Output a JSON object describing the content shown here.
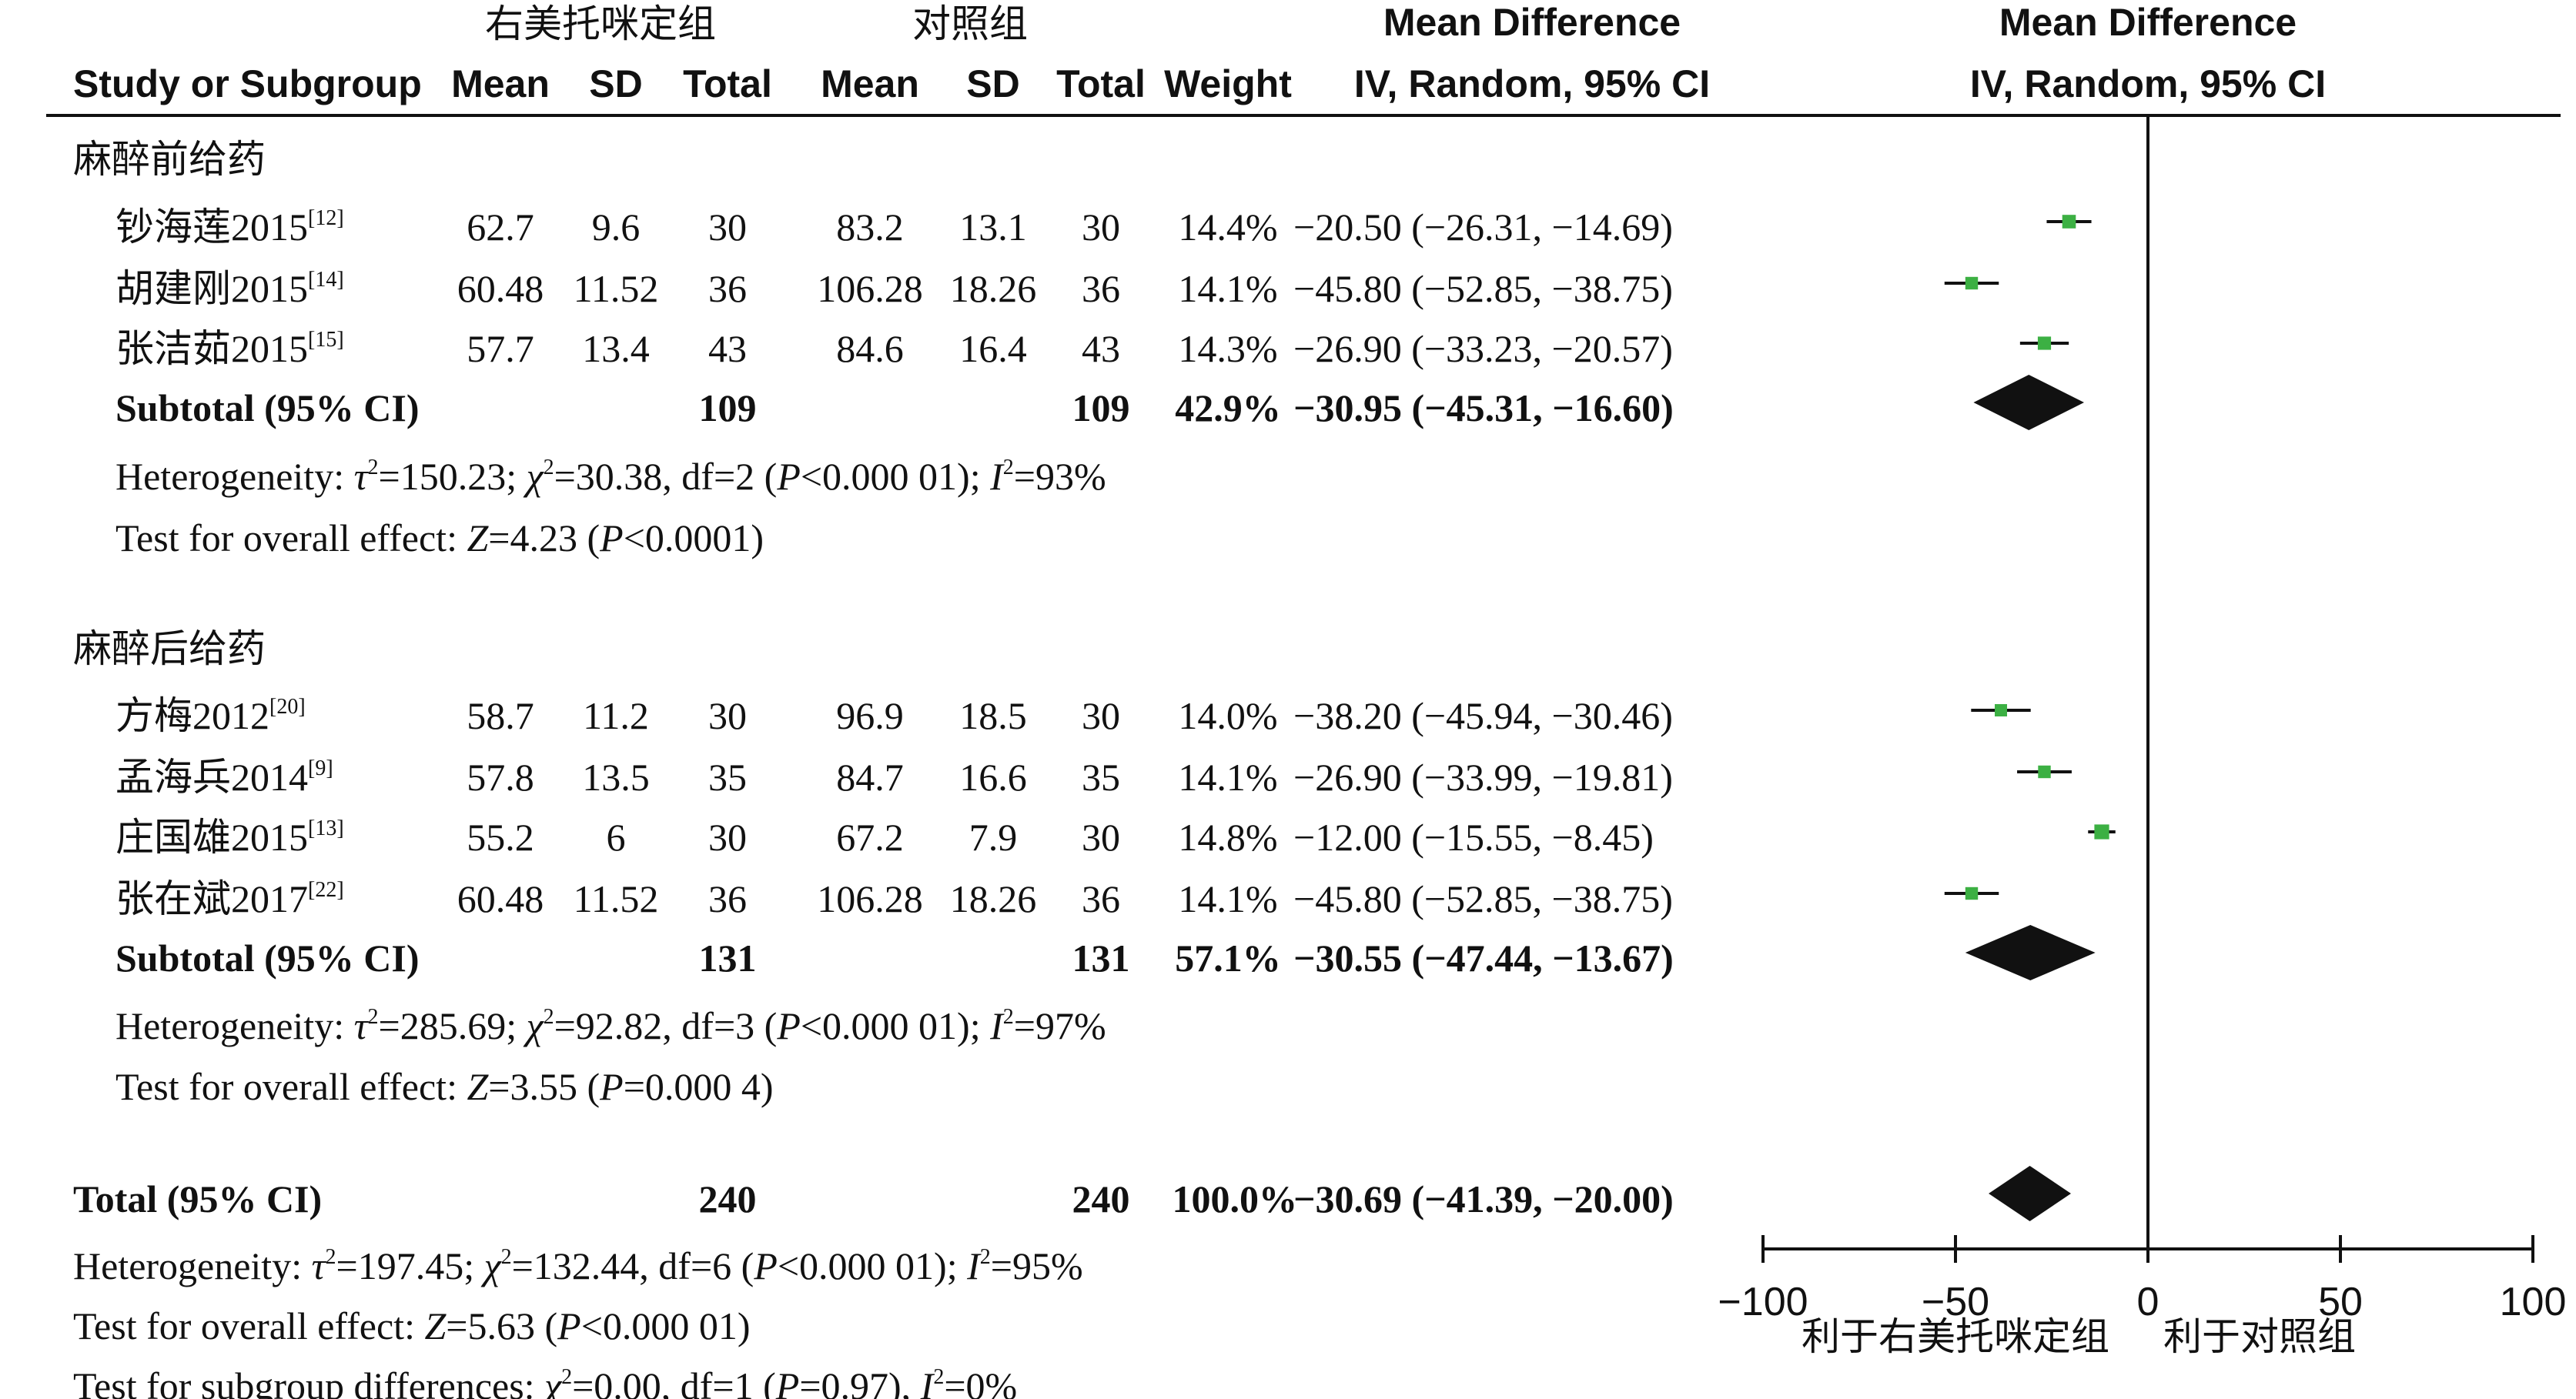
{
  "header": {
    "group_exp": "右美托咪定组",
    "group_ctl": "对照组",
    "md_title_left": "Mean Difference",
    "md_subtitle_left": "IV, Random, 95% CI",
    "md_title_right": "Mean Difference",
    "md_subtitle_right": "IV, Random, 95% CI",
    "study_label": "Study or Subgroup",
    "mean_exp": "Mean",
    "sd_exp": "SD",
    "total_exp": "Total",
    "mean_ctl": "Mean",
    "sd_ctl": "SD",
    "total_ctl": "Total",
    "weight": "Weight"
  },
  "subgroups": [
    {
      "title": "麻醉前给药",
      "studies": [
        {
          "name": "钞海莲2015",
          "ref": "[12]",
          "mean_e": "62.7",
          "sd_e": "9.6",
          "n_e": "30",
          "mean_c": "83.2",
          "sd_c": "13.1",
          "n_c": "30",
          "weight": "14.4%",
          "ci_text": "−20.50 (−26.31, −14.69)",
          "md": -20.5,
          "lo": -26.31,
          "hi": -14.69,
          "w": 14.4
        },
        {
          "name": "胡建刚2015",
          "ref": "[14]",
          "mean_e": "60.48",
          "sd_e": "11.52",
          "n_e": "36",
          "mean_c": "106.28",
          "sd_c": "18.26",
          "n_c": "36",
          "weight": "14.1%",
          "ci_text": "−45.80 (−52.85, −38.75)",
          "md": -45.8,
          "lo": -52.85,
          "hi": -38.75,
          "w": 14.1
        },
        {
          "name": "张洁茹2015",
          "ref": "[15]",
          "mean_e": "57.7",
          "sd_e": "13.4",
          "n_e": "43",
          "mean_c": "84.6",
          "sd_c": "16.4",
          "n_c": "43",
          "weight": "14.3%",
          "ci_text": "−26.90 (−33.23, −20.57)",
          "md": -26.9,
          "lo": -33.23,
          "hi": -20.57,
          "w": 14.3
        }
      ],
      "subtotal": {
        "label": "Subtotal (95% CI)",
        "n_e": "109",
        "n_c": "109",
        "weight": "42.9%",
        "ci_text": "−30.95 (−45.31, −16.60)",
        "md": -30.95,
        "lo": -45.31,
        "hi": -16.6
      },
      "heterogeneity": {
        "prefix": "Heterogeneity: ",
        "tau_sym": "τ",
        "tau_val": "=150.23; ",
        "chi_sym": "χ",
        "chi_val": "=30.38, df=2 (",
        "p_sym": "P",
        "p_val": "<0.000 01); ",
        "i_sym": "I",
        "i_val": "=93%"
      },
      "overall": {
        "prefix": "Test for overall effect: ",
        "z_sym": "Z",
        "z_val": "=4.23 (",
        "p_sym": "P",
        "p_val": "<0.0001)"
      }
    },
    {
      "title": "麻醉后给药",
      "studies": [
        {
          "name": "方梅2012",
          "ref": "[20]",
          "mean_e": "58.7",
          "sd_e": "11.2",
          "n_e": "30",
          "mean_c": "96.9",
          "sd_c": "18.5",
          "n_c": "30",
          "weight": "14.0%",
          "ci_text": "−38.20 (−45.94, −30.46)",
          "md": -38.2,
          "lo": -45.94,
          "hi": -30.46,
          "w": 14.0
        },
        {
          "name": "孟海兵2014",
          "ref": "[9]",
          "mean_e": "57.8",
          "sd_e": "13.5",
          "n_e": "35",
          "mean_c": "84.7",
          "sd_c": "16.6",
          "n_c": "35",
          "weight": "14.1%",
          "ci_text": "−26.90 (−33.99, −19.81)",
          "md": -26.9,
          "lo": -33.99,
          "hi": -19.81,
          "w": 14.1
        },
        {
          "name": "庄国雄2015",
          "ref": "[13]",
          "mean_e": "55.2",
          "sd_e": "6",
          "n_e": "30",
          "mean_c": "67.2",
          "sd_c": "7.9",
          "n_c": "30",
          "weight": "14.8%",
          "ci_text": "−12.00 (−15.55, −8.45)",
          "md": -12.0,
          "lo": -15.55,
          "hi": -8.45,
          "w": 14.8
        },
        {
          "name": "张在斌2017",
          "ref": "[22]",
          "mean_e": "60.48",
          "sd_e": "11.52",
          "n_e": "36",
          "mean_c": "106.28",
          "sd_c": "18.26",
          "n_c": "36",
          "weight": "14.1%",
          "ci_text": "−45.80 (−52.85, −38.75)",
          "md": -45.8,
          "lo": -52.85,
          "hi": -38.75,
          "w": 14.1
        }
      ],
      "subtotal": {
        "label": "Subtotal (95% CI)",
        "n_e": "131",
        "n_c": "131",
        "weight": "57.1%",
        "ci_text": "−30.55 (−47.44, −13.67)",
        "md": -30.55,
        "lo": -47.44,
        "hi": -13.67
      },
      "heterogeneity": {
        "prefix": "Heterogeneity: ",
        "tau_sym": "τ",
        "tau_val": "=285.69; ",
        "chi_sym": "χ",
        "chi_val": "=92.82, df=3 (",
        "p_sym": "P",
        "p_val": "<0.000 01); ",
        "i_sym": "I",
        "i_val": "=97%"
      },
      "overall": {
        "prefix": "Test for overall effect: ",
        "z_sym": "Z",
        "z_val": "=3.55 (",
        "p_sym": "P",
        "p_val": "=0.000 4)"
      }
    }
  ],
  "total": {
    "label": "Total (95% CI)",
    "n_e": "240",
    "n_c": "240",
    "weight": "100.0%",
    "ci_text": "−30.69 (−41.39, −20.00)",
    "md": -30.69,
    "lo": -41.39,
    "hi": -20.0,
    "heterogeneity": {
      "prefix": "Heterogeneity: ",
      "tau_sym": "τ",
      "tau_val": "=197.45; ",
      "chi_sym": "χ",
      "chi_val": "=132.44, df=6 (",
      "p_sym": "P",
      "p_val": "<0.000 01); ",
      "i_sym": "I",
      "i_val": "=95%"
    },
    "overall": {
      "prefix": "Test for overall effect: ",
      "z_sym": "Z",
      "z_val": "=5.63 (",
      "p_sym": "P",
      "p_val": "<0.000 01)"
    },
    "subgroup_diff": {
      "prefix": "Test for subgroup differences: ",
      "chi_sym": "χ",
      "chi_val": "=0.00, df=1 (",
      "p_sym": "P",
      "p_val": "=0.97), ",
      "i_sym": "I",
      "i_val": "=0%"
    }
  },
  "sup2": "2",
  "chart_data": {
    "type": "scatter",
    "subtype": "forest-plot",
    "xlim": [
      -100,
      100
    ],
    "ticks": [
      -100,
      -50,
      0,
      50,
      100
    ],
    "tick_labels": [
      "−100",
      "−50",
      "0",
      "50",
      "100"
    ],
    "xlabel_left": "利于右美托咪定组",
    "xlabel_right": "利于对照组",
    "reference_line": 0,
    "study_marker_color": "#3cb043",
    "diamond_color": "#111111"
  }
}
